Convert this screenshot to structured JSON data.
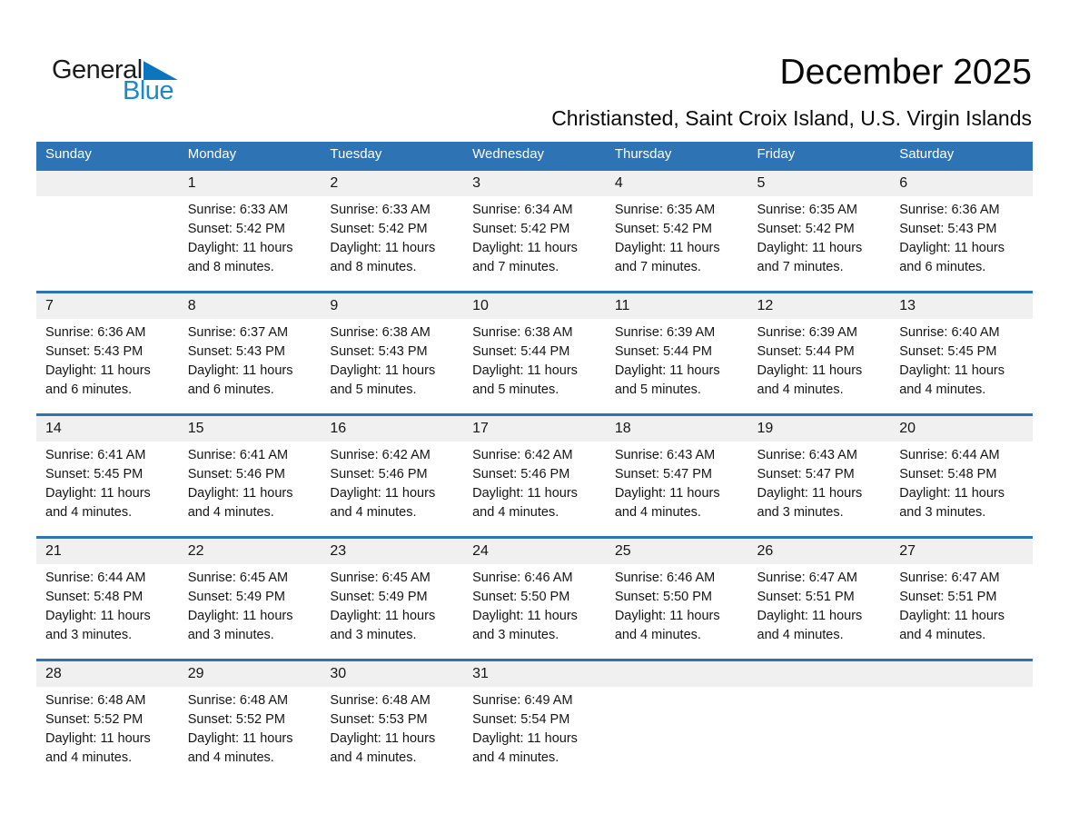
{
  "logo": {
    "general": "General",
    "blue": "Blue"
  },
  "header": {
    "title": "December 2025",
    "subtitle": "Christiansted, Saint Croix Island, U.S. Virgin Islands"
  },
  "colors": {
    "accent_blue": "#2e74b5",
    "band_gray": "#f0f0f0",
    "logo_text_blue": "#1789cd",
    "logo_triangle_blue": "#0b76bd",
    "header_text": "#ffffff"
  },
  "icons": {
    "logo_triangle": "triangle-pennant"
  },
  "calendar": {
    "weekday_headers": [
      "Sunday",
      "Monday",
      "Tuesday",
      "Wednesday",
      "Thursday",
      "Friday",
      "Saturday"
    ],
    "weeks": [
      [
        null,
        {
          "day": "1",
          "lines": [
            "Sunrise: 6:33 AM",
            "Sunset: 5:42 PM",
            "Daylight: 11 hours",
            "and 8 minutes."
          ]
        },
        {
          "day": "2",
          "lines": [
            "Sunrise: 6:33 AM",
            "Sunset: 5:42 PM",
            "Daylight: 11 hours",
            "and 8 minutes."
          ]
        },
        {
          "day": "3",
          "lines": [
            "Sunrise: 6:34 AM",
            "Sunset: 5:42 PM",
            "Daylight: 11 hours",
            "and 7 minutes."
          ]
        },
        {
          "day": "4",
          "lines": [
            "Sunrise: 6:35 AM",
            "Sunset: 5:42 PM",
            "Daylight: 11 hours",
            "and 7 minutes."
          ]
        },
        {
          "day": "5",
          "lines": [
            "Sunrise: 6:35 AM",
            "Sunset: 5:42 PM",
            "Daylight: 11 hours",
            "and 7 minutes."
          ]
        },
        {
          "day": "6",
          "lines": [
            "Sunrise: 6:36 AM",
            "Sunset: 5:43 PM",
            "Daylight: 11 hours",
            "and 6 minutes."
          ]
        }
      ],
      [
        {
          "day": "7",
          "lines": [
            "Sunrise: 6:36 AM",
            "Sunset: 5:43 PM",
            "Daylight: 11 hours",
            "and 6 minutes."
          ]
        },
        {
          "day": "8",
          "lines": [
            "Sunrise: 6:37 AM",
            "Sunset: 5:43 PM",
            "Daylight: 11 hours",
            "and 6 minutes."
          ]
        },
        {
          "day": "9",
          "lines": [
            "Sunrise: 6:38 AM",
            "Sunset: 5:43 PM",
            "Daylight: 11 hours",
            "and 5 minutes."
          ]
        },
        {
          "day": "10",
          "lines": [
            "Sunrise: 6:38 AM",
            "Sunset: 5:44 PM",
            "Daylight: 11 hours",
            "and 5 minutes."
          ]
        },
        {
          "day": "11",
          "lines": [
            "Sunrise: 6:39 AM",
            "Sunset: 5:44 PM",
            "Daylight: 11 hours",
            "and 5 minutes."
          ]
        },
        {
          "day": "12",
          "lines": [
            "Sunrise: 6:39 AM",
            "Sunset: 5:44 PM",
            "Daylight: 11 hours",
            "and 4 minutes."
          ]
        },
        {
          "day": "13",
          "lines": [
            "Sunrise: 6:40 AM",
            "Sunset: 5:45 PM",
            "Daylight: 11 hours",
            "and 4 minutes."
          ]
        }
      ],
      [
        {
          "day": "14",
          "lines": [
            "Sunrise: 6:41 AM",
            "Sunset: 5:45 PM",
            "Daylight: 11 hours",
            "and 4 minutes."
          ]
        },
        {
          "day": "15",
          "lines": [
            "Sunrise: 6:41 AM",
            "Sunset: 5:46 PM",
            "Daylight: 11 hours",
            "and 4 minutes."
          ]
        },
        {
          "day": "16",
          "lines": [
            "Sunrise: 6:42 AM",
            "Sunset: 5:46 PM",
            "Daylight: 11 hours",
            "and 4 minutes."
          ]
        },
        {
          "day": "17",
          "lines": [
            "Sunrise: 6:42 AM",
            "Sunset: 5:46 PM",
            "Daylight: 11 hours",
            "and 4 minutes."
          ]
        },
        {
          "day": "18",
          "lines": [
            "Sunrise: 6:43 AM",
            "Sunset: 5:47 PM",
            "Daylight: 11 hours",
            "and 4 minutes."
          ]
        },
        {
          "day": "19",
          "lines": [
            "Sunrise: 6:43 AM",
            "Sunset: 5:47 PM",
            "Daylight: 11 hours",
            "and 3 minutes."
          ]
        },
        {
          "day": "20",
          "lines": [
            "Sunrise: 6:44 AM",
            "Sunset: 5:48 PM",
            "Daylight: 11 hours",
            "and 3 minutes."
          ]
        }
      ],
      [
        {
          "day": "21",
          "lines": [
            "Sunrise: 6:44 AM",
            "Sunset: 5:48 PM",
            "Daylight: 11 hours",
            "and 3 minutes."
          ]
        },
        {
          "day": "22",
          "lines": [
            "Sunrise: 6:45 AM",
            "Sunset: 5:49 PM",
            "Daylight: 11 hours",
            "and 3 minutes."
          ]
        },
        {
          "day": "23",
          "lines": [
            "Sunrise: 6:45 AM",
            "Sunset: 5:49 PM",
            "Daylight: 11 hours",
            "and 3 minutes."
          ]
        },
        {
          "day": "24",
          "lines": [
            "Sunrise: 6:46 AM",
            "Sunset: 5:50 PM",
            "Daylight: 11 hours",
            "and 3 minutes."
          ]
        },
        {
          "day": "25",
          "lines": [
            "Sunrise: 6:46 AM",
            "Sunset: 5:50 PM",
            "Daylight: 11 hours",
            "and 4 minutes."
          ]
        },
        {
          "day": "26",
          "lines": [
            "Sunrise: 6:47 AM",
            "Sunset: 5:51 PM",
            "Daylight: 11 hours",
            "and 4 minutes."
          ]
        },
        {
          "day": "27",
          "lines": [
            "Sunrise: 6:47 AM",
            "Sunset: 5:51 PM",
            "Daylight: 11 hours",
            "and 4 minutes."
          ]
        }
      ],
      [
        {
          "day": "28",
          "lines": [
            "Sunrise: 6:48 AM",
            "Sunset: 5:52 PM",
            "Daylight: 11 hours",
            "and 4 minutes."
          ]
        },
        {
          "day": "29",
          "lines": [
            "Sunrise: 6:48 AM",
            "Sunset: 5:52 PM",
            "Daylight: 11 hours",
            "and 4 minutes."
          ]
        },
        {
          "day": "30",
          "lines": [
            "Sunrise: 6:48 AM",
            "Sunset: 5:53 PM",
            "Daylight: 11 hours",
            "and 4 minutes."
          ]
        },
        {
          "day": "31",
          "lines": [
            "Sunrise: 6:49 AM",
            "Sunset: 5:54 PM",
            "Daylight: 11 hours",
            "and 4 minutes."
          ]
        },
        null,
        null,
        null
      ]
    ]
  }
}
